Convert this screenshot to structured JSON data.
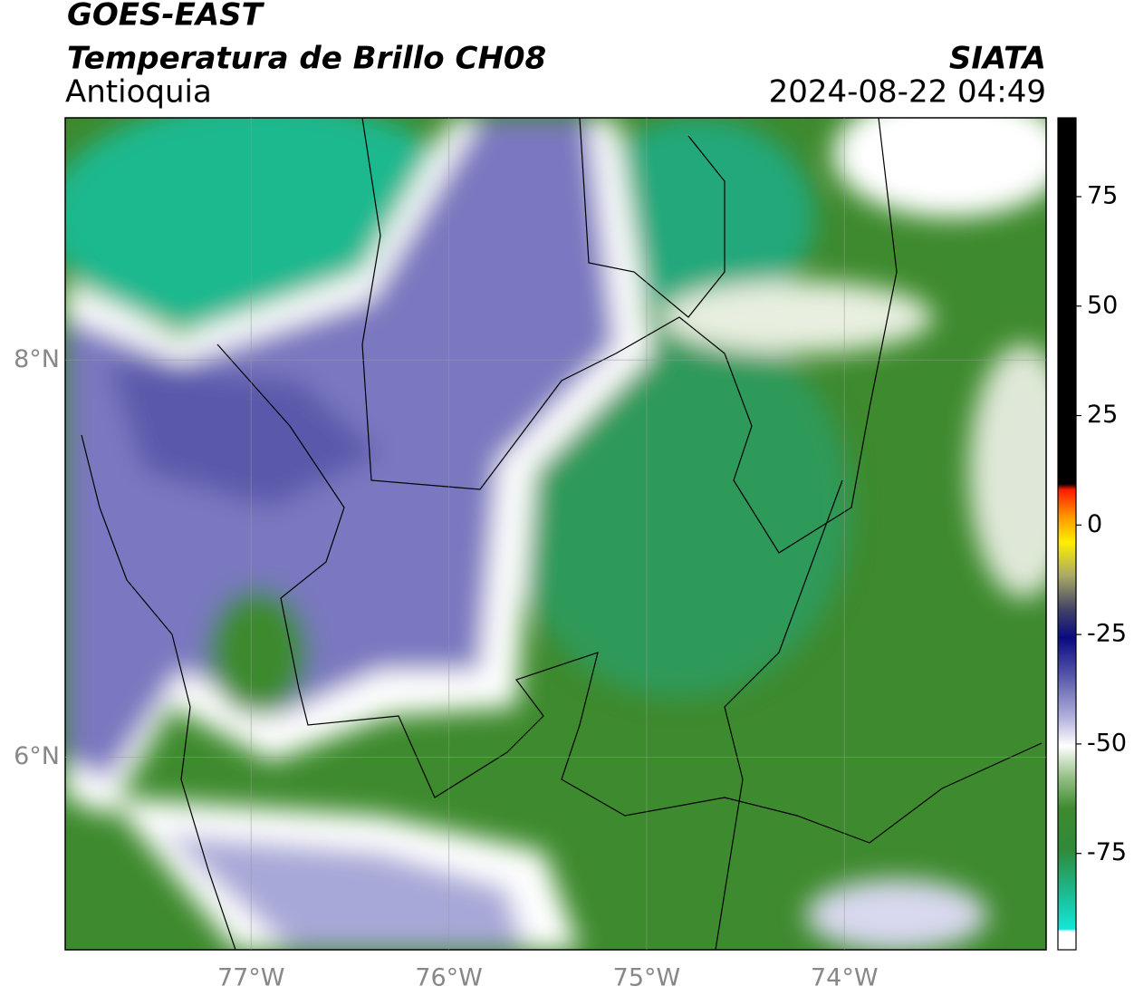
{
  "header": {
    "title": "GOES-EAST",
    "subtitle": "Temperatura de Brillo CH08",
    "region": "Antioquia",
    "source": "SIATA",
    "datetime": "2024-08-22 04:49"
  },
  "map": {
    "xlim": [
      -77.94,
      -72.98
    ],
    "ylim": [
      5.03,
      9.22
    ],
    "xticks": [
      {
        "value": -77,
        "label": "77°W"
      },
      {
        "value": -76,
        "label": "76°W"
      },
      {
        "value": -75,
        "label": "75°W"
      },
      {
        "value": -74,
        "label": "74°W"
      }
    ],
    "yticks": [
      {
        "value": 8,
        "label": "8°N"
      },
      {
        "value": 6,
        "label": "6°N"
      }
    ],
    "grid": true
  },
  "colorbar": {
    "lim": [
      -97,
      93
    ],
    "ticks": [
      75,
      50,
      25,
      0,
      -25,
      -50,
      -75
    ]
  }
}
